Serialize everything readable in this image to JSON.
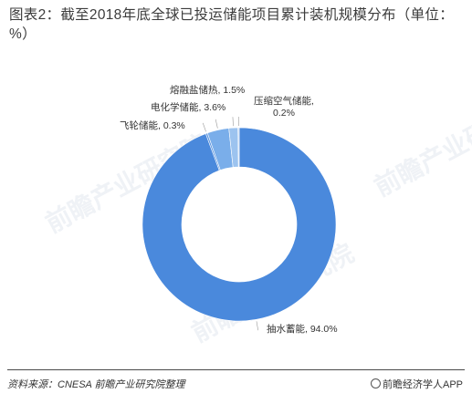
{
  "title": "图表2：截至2018年底全球已投运储能项目累计装机规模分布（单位：%）",
  "chart_data": {
    "type": "pie",
    "donut": true,
    "title": "图表2：截至2018年底全球已投运储能项目累计装机规模分布（单位：%）",
    "slices": [
      {
        "name": "抽水蓄能",
        "value": 94.0,
        "label": "抽水蓄能, 94.0%",
        "color": "#4a89dc"
      },
      {
        "name": "飞轮储能",
        "value": 0.3,
        "label": "飞轮储能, 0.3%",
        "color": "#5f97e0"
      },
      {
        "name": "电化学储能",
        "value": 3.6,
        "label": "电化学储能, 3.6%",
        "color": "#7aaeea"
      },
      {
        "name": "熔融盐储热",
        "value": 1.5,
        "label": "熔融盐储热, 1.5%",
        "color": "#9cc3ef"
      },
      {
        "name": "压缩空气储能",
        "value": 0.2,
        "label": "压缩空气储能, 0.2%",
        "color": "#c7dcf5"
      }
    ]
  },
  "watermark": "前瞻产业研究院",
  "footer": {
    "source": "资料来源：CNESA 前瞻产业研究院整理",
    "brand": "前瞻经济学人APP"
  }
}
